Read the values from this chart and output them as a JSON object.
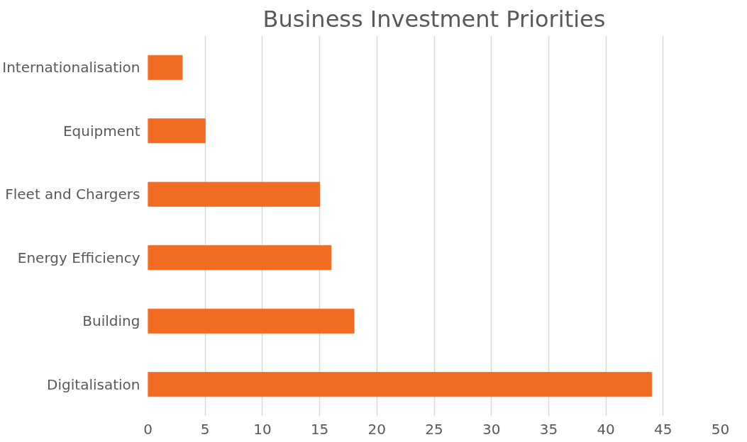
{
  "chart_data": {
    "type": "bar",
    "orientation": "horizontal",
    "title": "Business Investment Priorities",
    "categories": [
      "Internationalisation",
      "Equipment",
      "Fleet and Chargers",
      "Energy Efficiency",
      "Building",
      "Digitalisation"
    ],
    "values": [
      3,
      5,
      15,
      16,
      18,
      44
    ],
    "color": "#f26b22",
    "xlim": [
      0,
      50
    ],
    "xticks": [
      0,
      5,
      10,
      15,
      20,
      25,
      30,
      35,
      40,
      45,
      50
    ],
    "grid": "x"
  }
}
